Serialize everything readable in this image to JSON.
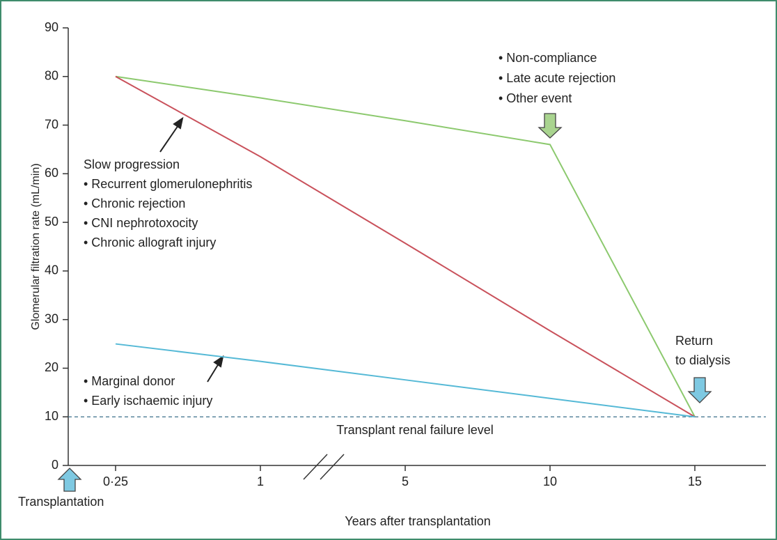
{
  "chart_data": {
    "type": "line",
    "ylabel": "Glomerular filtration rate (mL/min)",
    "xlabel": "Years after transplantation",
    "categories": [
      "0·25",
      "1",
      "5",
      "10",
      "15"
    ],
    "series": [
      {
        "color": "#8cc96e",
        "values": [
          80,
          75.6,
          70.9,
          66,
          10
        ]
      },
      {
        "color": "#c9515b",
        "values": [
          80,
          63.5,
          45.7,
          27.7,
          10
        ]
      },
      {
        "color": "#55b9d6",
        "values": [
          25,
          21.4,
          17.6,
          13.8,
          10
        ]
      }
    ],
    "ylim": [
      0,
      90
    ],
    "yticks": [
      0,
      10,
      20,
      30,
      40,
      50,
      60,
      70,
      80,
      90
    ],
    "reference_line": {
      "value": 10,
      "label": "Transplant renal failure level"
    },
    "annotations": [
      [
        "• Non-compliance",
        "• Late acute rejection",
        "• Other event"
      ],
      [
        "Slow progression",
        "• Recurrent glomerulonephritis",
        "• Chronic rejection",
        "• CNI nephrotoxocity",
        "• Chronic allograft injury"
      ],
      [
        "• Marginal donor",
        "• Early ischaemic injury"
      ],
      [
        "Return",
        "to dialysis"
      ],
      [
        "Transplantation"
      ]
    ]
  }
}
